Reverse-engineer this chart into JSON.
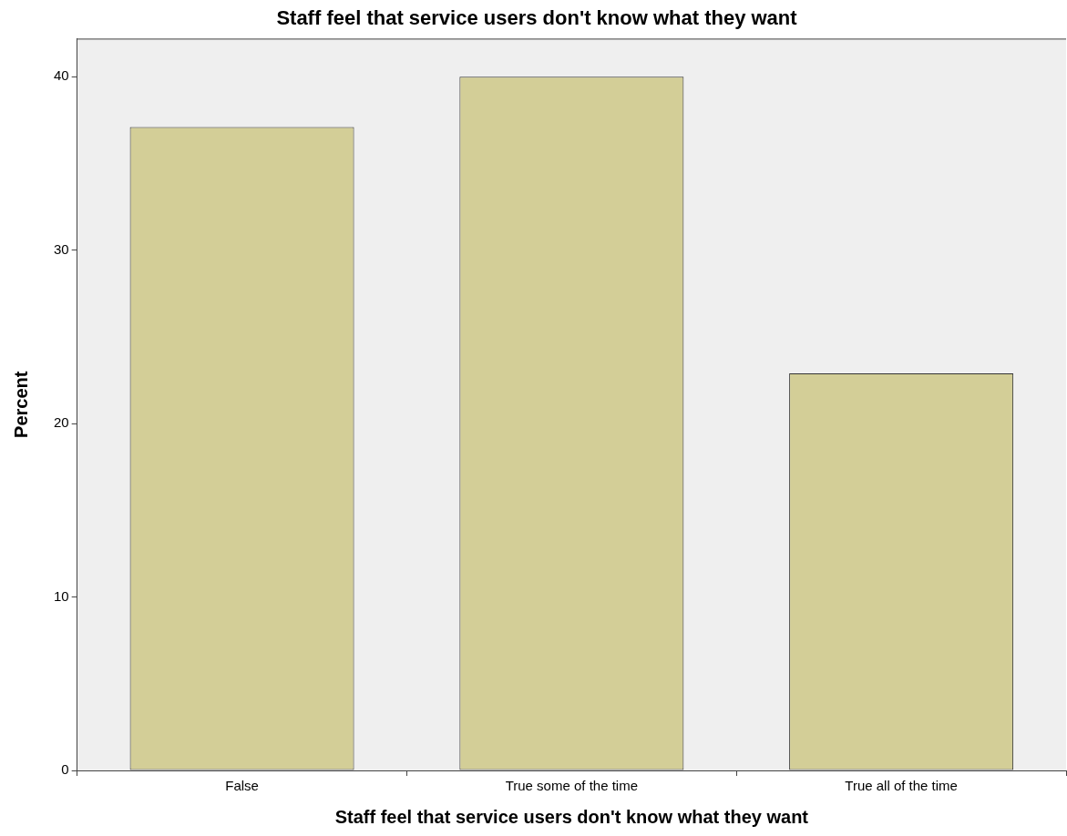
{
  "chart_data": {
    "type": "bar",
    "title": "Staff feel that service users don't know what they want",
    "xlabel": "Staff feel that service users don't know what they want",
    "ylabel": "Percent",
    "categories": [
      "False",
      "True some of the time",
      "True all of the time"
    ],
    "values": [
      37.1,
      40.0,
      22.9
    ],
    "color": "#d3ce97",
    "ylim": [
      0,
      42.2
    ],
    "yticks": [
      0,
      10,
      20,
      30,
      40
    ],
    "grid": false,
    "legend": false
  }
}
